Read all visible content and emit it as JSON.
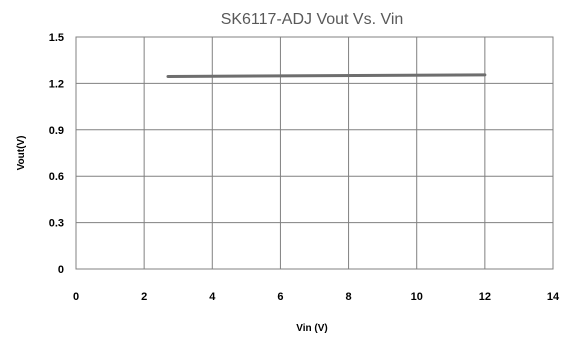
{
  "chart_data": {
    "type": "line",
    "title": "SK6117-ADJ Vout Vs. Vin",
    "xlabel": "Vin (V)",
    "ylabel": "Vout(V)",
    "xlim": [
      0,
      14
    ],
    "ylim": [
      0,
      1.5
    ],
    "xticks": [
      "0",
      "2",
      "4",
      "6",
      "8",
      "10",
      "12",
      "14"
    ],
    "yticks": [
      "0",
      "0.3",
      "0.6",
      "0.9",
      "1.2",
      "1.5"
    ],
    "grid": true,
    "legend": "none",
    "series": [
      {
        "x": [
          2.7,
          12
        ],
        "y": [
          1.245,
          1.255
        ],
        "color": "#6e6e6e"
      }
    ]
  }
}
